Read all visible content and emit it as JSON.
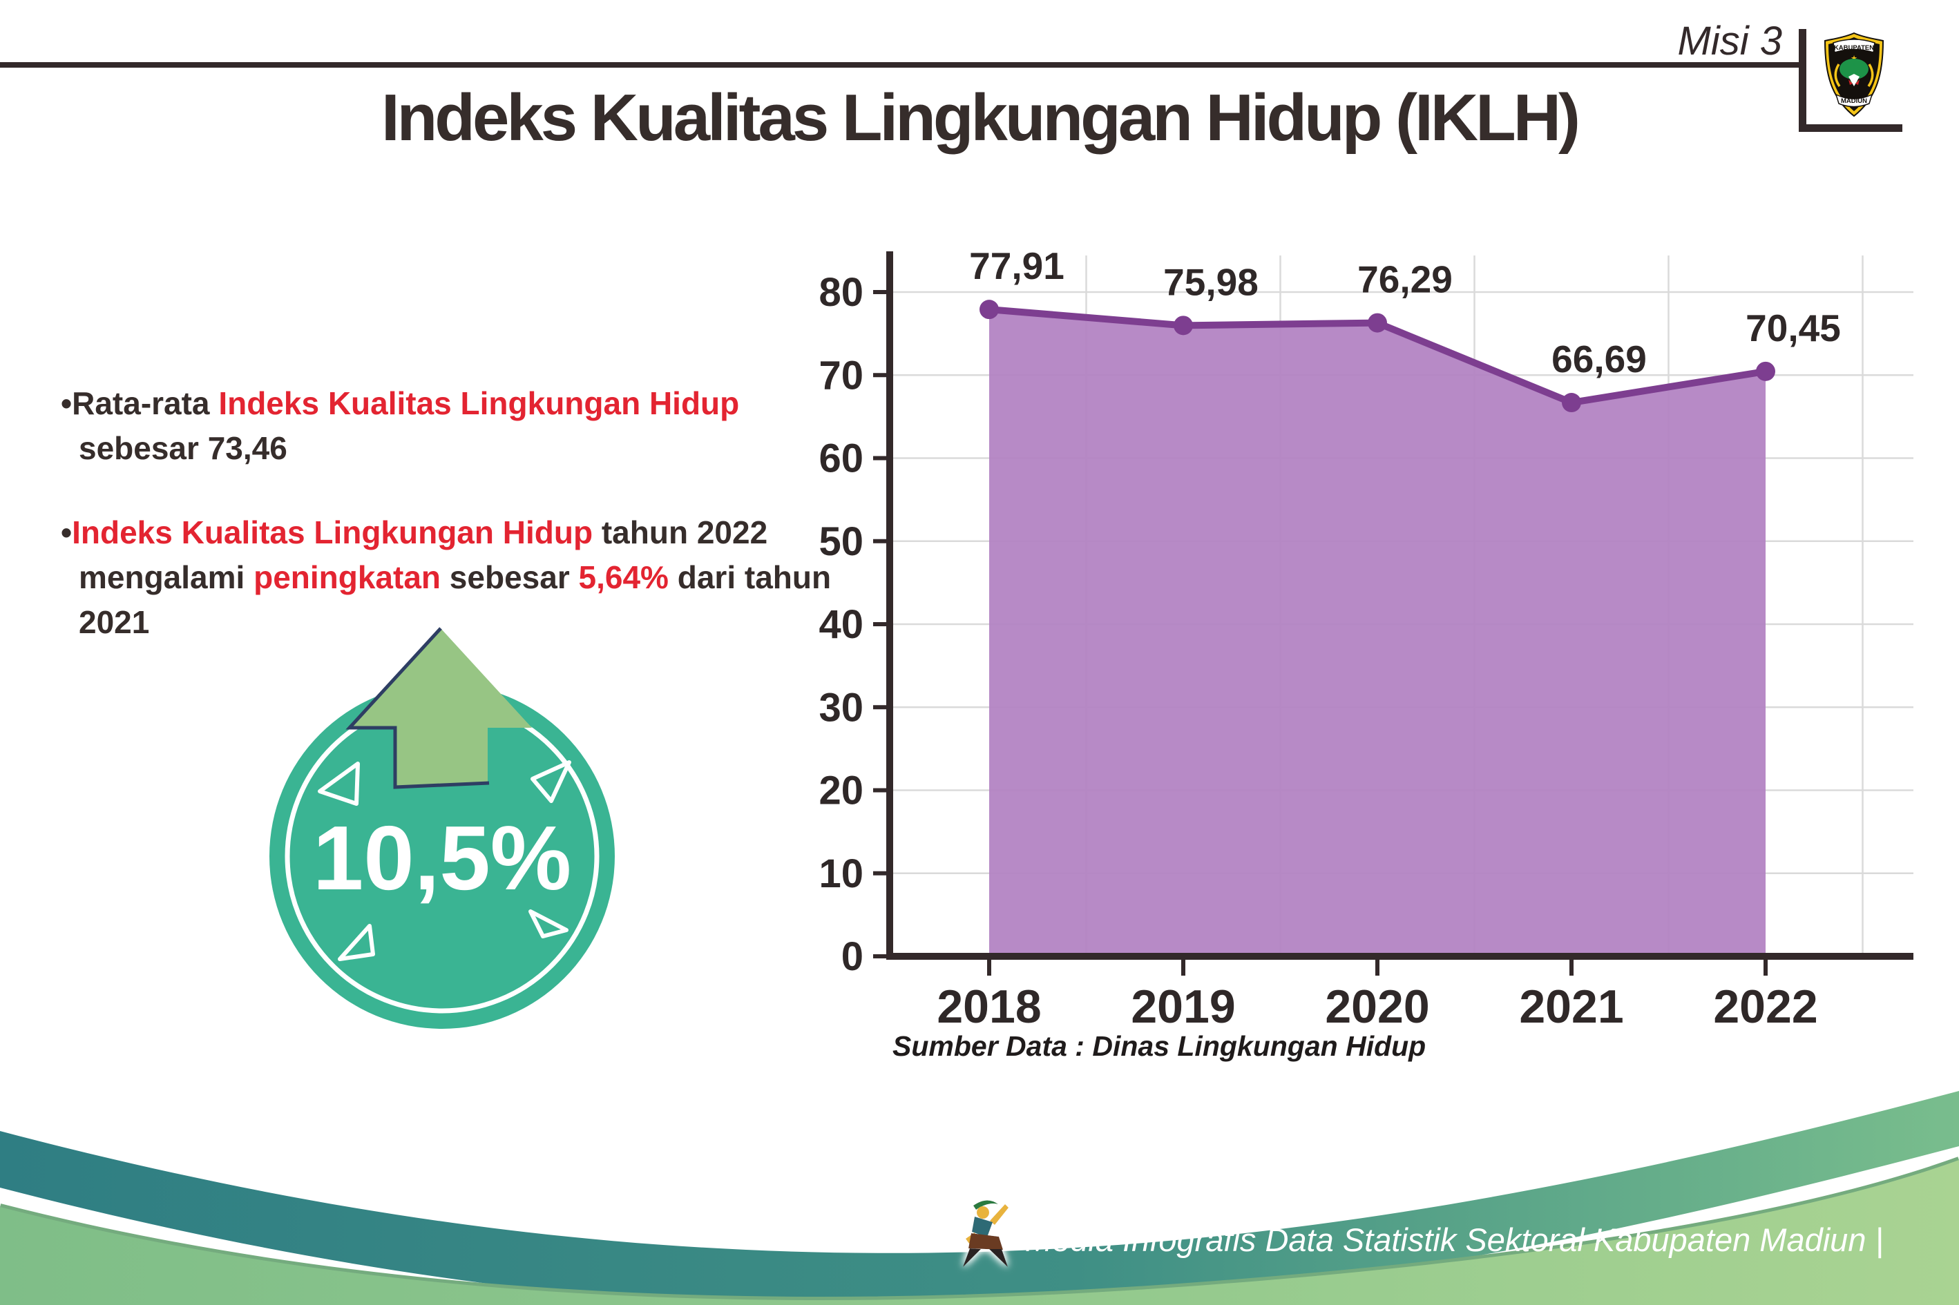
{
  "header": {
    "misi": "Misi 3",
    "logo": {
      "top": "KABUPATEN",
      "bottom": "MADIUN"
    }
  },
  "title": "Indeks Kualitas Lingkungan Hidup (IKLH)",
  "bullets": [
    {
      "bullet": "•",
      "segments": [
        {
          "text": "Rata-rata ",
          "color": "dark"
        },
        {
          "text": "Indeks Kualitas Lingkungan Hidup",
          "color": "red"
        },
        {
          "text": " sebesar 73,46",
          "color": "dark"
        }
      ]
    },
    {
      "bullet": "•",
      "segments": [
        {
          "text": "Indeks Kualitas Lingkungan Hidup",
          "color": "red"
        },
        {
          "text": " tahun 2022 mengalami ",
          "color": "dark"
        },
        {
          "text": "peningkatan",
          "color": "red"
        },
        {
          "text": " sebesar ",
          "color": "dark"
        },
        {
          "text": "5,64%",
          "color": "red"
        },
        {
          "text": " dari tahun 2021",
          "color": "dark"
        }
      ]
    }
  ],
  "badge": {
    "value": "10,5%",
    "circle_color": "#3ab493",
    "arrow_color": "#97c584",
    "arrow_outline_color": "#2e3e63"
  },
  "chart_data": {
    "type": "area",
    "title": "Indeks Kualitas Lingkungan Hidup (IKLH)",
    "categories": [
      "2018",
      "2019",
      "2020",
      "2021",
      "2022"
    ],
    "series": [
      {
        "name": "IKLH",
        "values": [
          77.91,
          75.98,
          76.29,
          66.69,
          70.45
        ]
      }
    ],
    "point_labels": [
      "77,91",
      "75,98",
      "76,29",
      "66,69",
      "70,45"
    ],
    "ylim": [
      0,
      84
    ],
    "yticks": [
      0,
      10,
      20,
      30,
      40,
      50,
      60,
      70,
      80
    ],
    "grid": true,
    "legend": "none",
    "line_color": "#7d3e90",
    "fill_color": "#b384c3",
    "axis_color": "#33292a",
    "label_color": "#2f2828",
    "source": "Sumber Data : Dinas Lingkungan Hidup"
  },
  "footer": {
    "text": "Media Infografis Data Statistik Sektoral Kabupaten Madiun |"
  }
}
